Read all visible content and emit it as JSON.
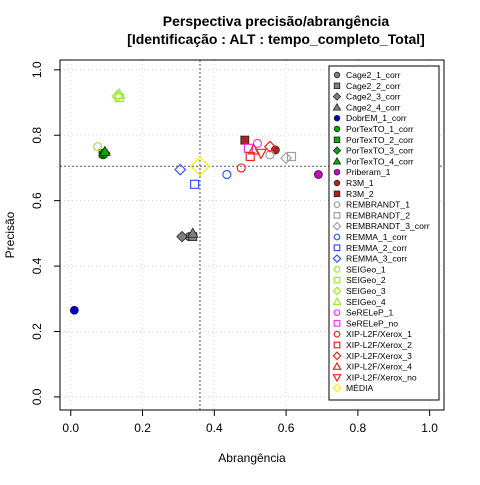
{
  "chart_data": {
    "type": "scatter",
    "title": "Perspectiva precisão/abrangência",
    "subtitle": "[Identificação : ALT : tempo_completo_Total]",
    "xlabel": "Abrangência",
    "ylabel": "Precisão",
    "xlim": [
      0,
      1
    ],
    "ylim": [
      0,
      1
    ],
    "x_ticks": [
      "0.0",
      "0.2",
      "0.4",
      "0.6",
      "0.8",
      "1.0"
    ],
    "y_ticks": [
      "0.0",
      "0.2",
      "0.4",
      "0.6",
      "0.8",
      "1.0"
    ],
    "grid": true,
    "legend_position": "right inside plot",
    "reference_lines": {
      "x": 0.36,
      "y": 0.705
    },
    "series": [
      {
        "name": "Cage2_1_corr",
        "shape": "circle",
        "color": "#808080",
        "filled": true,
        "x": 0.33,
        "y": 0.49
      },
      {
        "name": "Cage2_2_corr",
        "shape": "square",
        "color": "#808080",
        "filled": true,
        "x": 0.34,
        "y": 0.49
      },
      {
        "name": "Cage2_3_corr",
        "shape": "diamond",
        "color": "#808080",
        "filled": true,
        "x": 0.31,
        "y": 0.49
      },
      {
        "name": "Cage2_4_corr",
        "shape": "triangle",
        "color": "#808080",
        "filled": true,
        "x": 0.34,
        "y": 0.5
      },
      {
        "name": "DobrEM_1_corr",
        "shape": "circle",
        "color": "#0000cd",
        "filled": true,
        "x": 0.01,
        "y": 0.265
      },
      {
        "name": "PorTexTO_1_corr",
        "shape": "circle",
        "color": "#00aa00",
        "filled": true,
        "x": 0.09,
        "y": 0.74
      },
      {
        "name": "PorTexTO_2_corr",
        "shape": "square",
        "color": "#00aa00",
        "filled": true,
        "x": 0.09,
        "y": 0.745
      },
      {
        "name": "PorTexTO_3_corr",
        "shape": "diamond",
        "color": "#00aa00",
        "filled": true,
        "x": 0.095,
        "y": 0.745
      },
      {
        "name": "PorTexTO_4_corr",
        "shape": "triangle",
        "color": "#00aa00",
        "filled": true,
        "x": 0.095,
        "y": 0.75
      },
      {
        "name": "Priberam_1",
        "shape": "circle",
        "color": "#cc00cc",
        "filled": true,
        "x": 0.69,
        "y": 0.68
      },
      {
        "name": "R3M_1",
        "shape": "circle",
        "color": "#b22222",
        "filled": true,
        "x": 0.57,
        "y": 0.755
      },
      {
        "name": "R3M_2",
        "shape": "square",
        "color": "#b22222",
        "filled": true,
        "x": 0.485,
        "y": 0.785
      },
      {
        "name": "REMBRANDT_1",
        "shape": "circle",
        "color": "#a0a0a0",
        "filled": false,
        "x": 0.555,
        "y": 0.74
      },
      {
        "name": "REMBRANDT_2",
        "shape": "square",
        "color": "#a0a0a0",
        "filled": false,
        "x": 0.615,
        "y": 0.735
      },
      {
        "name": "REMBRANDT_3_corr",
        "shape": "diamond",
        "color": "#a0a0a0",
        "filled": false,
        "x": 0.6,
        "y": 0.73
      },
      {
        "name": "REMMA_1_corr",
        "shape": "circle",
        "color": "#3355ff",
        "filled": false,
        "x": 0.435,
        "y": 0.68
      },
      {
        "name": "REMMA_2_corr",
        "shape": "square",
        "color": "#3355ff",
        "filled": false,
        "x": 0.345,
        "y": 0.65
      },
      {
        "name": "REMMA_3_corr",
        "shape": "diamond",
        "color": "#3355ff",
        "filled": false,
        "x": 0.305,
        "y": 0.695
      },
      {
        "name": "SEIGeo_1",
        "shape": "circle",
        "color": "#99ee22",
        "filled": false,
        "x": 0.075,
        "y": 0.765
      },
      {
        "name": "SEIGeo_2",
        "shape": "square",
        "color": "#99ee22",
        "filled": false,
        "x": 0.135,
        "y": 0.915
      },
      {
        "name": "SEIGeo_3",
        "shape": "diamond",
        "color": "#99ee22",
        "filled": false,
        "x": 0.13,
        "y": 0.92
      },
      {
        "name": "SEIGeo_4",
        "shape": "triangle",
        "color": "#99ee22",
        "filled": false,
        "x": 0.135,
        "y": 0.925
      },
      {
        "name": "SeRELeP_1",
        "shape": "circle",
        "color": "#ff33ff",
        "filled": false,
        "x": 0.52,
        "y": 0.775
      },
      {
        "name": "SeRELeP_no",
        "shape": "square",
        "color": "#ff33ff",
        "filled": false,
        "x": 0.495,
        "y": 0.76
      },
      {
        "name": "XIP-L2F/Xerox_1",
        "shape": "circle",
        "color": "#ee2222",
        "filled": false,
        "x": 0.475,
        "y": 0.7
      },
      {
        "name": "XIP-L2F/Xerox_2",
        "shape": "square",
        "color": "#ee2222",
        "filled": false,
        "x": 0.5,
        "y": 0.735
      },
      {
        "name": "XIP-L2F/Xerox_3",
        "shape": "diamond",
        "color": "#ee2222",
        "filled": false,
        "x": 0.555,
        "y": 0.765
      },
      {
        "name": "XIP-L2F/Xerox_4",
        "shape": "triangle",
        "color": "#ee2222",
        "filled": false,
        "x": 0.51,
        "y": 0.755
      },
      {
        "name": "XIP-L2F/Xerox_no",
        "shape": "triangle-down",
        "color": "#ee2222",
        "filled": false,
        "x": 0.53,
        "y": 0.745
      },
      {
        "name": "MÉDIA",
        "shape": "diamond",
        "color": "#ffee00",
        "filled": false,
        "x": 0.36,
        "y": 0.705
      }
    ]
  }
}
